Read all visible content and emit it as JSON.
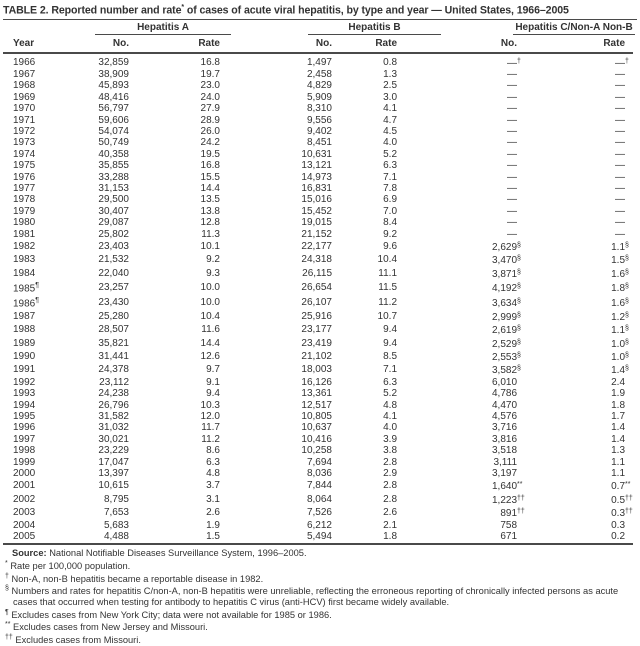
{
  "title": {
    "part1": "TABLE 2. Reported number and rate",
    "marker": "*",
    "part2": " of cases of acute viral hepatitis, by type and year — United States, 1966–2005"
  },
  "table": {
    "year_header": "Year",
    "groups": [
      {
        "label": "Hepatitis A"
      },
      {
        "label": "Hepatitis B"
      },
      {
        "label": "Hepatitis C/Non-A Non-B"
      }
    ],
    "subheaders": {
      "no": "No.",
      "rate": "Rate"
    },
    "columns": [
      "year",
      "year_mark",
      "hep_a_no",
      "hep_a_rate",
      "hep_b_no",
      "hep_b_rate",
      "hep_c_no",
      "hep_c_no_mark",
      "hep_c_rate",
      "hep_c_rate_mark"
    ],
    "rows": [
      [
        "1966",
        "",
        "32,859",
        "16.8",
        "1,497",
        "0.8",
        "—",
        "†",
        "—",
        "†"
      ],
      [
        "1967",
        "",
        "38,909",
        "19.7",
        "2,458",
        "1.3",
        "—",
        "",
        "—",
        ""
      ],
      [
        "1968",
        "",
        "45,893",
        "23.0",
        "4,829",
        "2.5",
        "—",
        "",
        "—",
        ""
      ],
      [
        "1969",
        "",
        "48,416",
        "24.0",
        "5,909",
        "3.0",
        "—",
        "",
        "—",
        ""
      ],
      [
        "1970",
        "",
        "56,797",
        "27.9",
        "8,310",
        "4.1",
        "—",
        "",
        "—",
        ""
      ],
      [
        "1971",
        "",
        "59,606",
        "28.9",
        "9,556",
        "4.7",
        "—",
        "",
        "—",
        ""
      ],
      [
        "1972",
        "",
        "54,074",
        "26.0",
        "9,402",
        "4.5",
        "—",
        "",
        "—",
        ""
      ],
      [
        "1973",
        "",
        "50,749",
        "24.2",
        "8,451",
        "4.0",
        "—",
        "",
        "—",
        ""
      ],
      [
        "1974",
        "",
        "40,358",
        "19.5",
        "10,631",
        "5.2",
        "—",
        "",
        "—",
        ""
      ],
      [
        "1975",
        "",
        "35,855",
        "16.8",
        "13,121",
        "6.3",
        "—",
        "",
        "—",
        ""
      ],
      [
        "1976",
        "",
        "33,288",
        "15.5",
        "14,973",
        "7.1",
        "—",
        "",
        "—",
        ""
      ],
      [
        "1977",
        "",
        "31,153",
        "14.4",
        "16,831",
        "7.8",
        "—",
        "",
        "—",
        ""
      ],
      [
        "1978",
        "",
        "29,500",
        "13.5",
        "15,016",
        "6.9",
        "—",
        "",
        "—",
        ""
      ],
      [
        "1979",
        "",
        "30,407",
        "13.8",
        "15,452",
        "7.0",
        "—",
        "",
        "—",
        ""
      ],
      [
        "1980",
        "",
        "29,087",
        "12.8",
        "19,015",
        "8.4",
        "—",
        "",
        "—",
        ""
      ],
      [
        "1981",
        "",
        "25,802",
        "11.3",
        "21,152",
        "9.2",
        "—",
        "",
        "—",
        ""
      ],
      [
        "1982",
        "",
        "23,403",
        "10.1",
        "22,177",
        "9.6",
        "2,629",
        "§",
        "1.1",
        "§"
      ],
      [
        "1983",
        "",
        "21,532",
        "9.2",
        "24,318",
        "10.4",
        "3,470",
        "§",
        "1.5",
        "§"
      ],
      [
        "1984",
        "",
        "22,040",
        "9.3",
        "26,115",
        "11.1",
        "3,871",
        "§",
        "1.6",
        "§"
      ],
      [
        "1985",
        "¶",
        "23,257",
        "10.0",
        "26,654",
        "11.5",
        "4,192",
        "§",
        "1.8",
        "§"
      ],
      [
        "1986",
        "¶",
        "23,430",
        "10.0",
        "26,107",
        "11.2",
        "3,634",
        "§",
        "1.6",
        "§"
      ],
      [
        "1987",
        "",
        "25,280",
        "10.4",
        "25,916",
        "10.7",
        "2,999",
        "§",
        "1.2",
        "§"
      ],
      [
        "1988",
        "",
        "28,507",
        "11.6",
        "23,177",
        "9.4",
        "2,619",
        "§",
        "1.1",
        "§"
      ],
      [
        "1989",
        "",
        "35,821",
        "14.4",
        "23,419",
        "9.4",
        "2,529",
        "§",
        "1.0",
        "§"
      ],
      [
        "1990",
        "",
        "31,441",
        "12.6",
        "21,102",
        "8.5",
        "2,553",
        "§",
        "1.0",
        "§"
      ],
      [
        "1991",
        "",
        "24,378",
        "9.7",
        "18,003",
        "7.1",
        "3,582",
        "§",
        "1.4",
        "§"
      ],
      [
        "1992",
        "",
        "23,112",
        "9.1",
        "16,126",
        "6.3",
        "6,010",
        "",
        "2.4",
        ""
      ],
      [
        "1993",
        "",
        "24,238",
        "9.4",
        "13,361",
        "5.2",
        "4,786",
        "",
        "1.9",
        ""
      ],
      [
        "1994",
        "",
        "26,796",
        "10.3",
        "12,517",
        "4.8",
        "4,470",
        "",
        "1.8",
        ""
      ],
      [
        "1995",
        "",
        "31,582",
        "12.0",
        "10,805",
        "4.1",
        "4,576",
        "",
        "1.7",
        ""
      ],
      [
        "1996",
        "",
        "31,032",
        "11.7",
        "10,637",
        "4.0",
        "3,716",
        "",
        "1.4",
        ""
      ],
      [
        "1997",
        "",
        "30,021",
        "11.2",
        "10,416",
        "3.9",
        "3,816",
        "",
        "1.4",
        ""
      ],
      [
        "1998",
        "",
        "23,229",
        "8.6",
        "10,258",
        "3.8",
        "3,518",
        "",
        "1.3",
        ""
      ],
      [
        "1999",
        "",
        "17,047",
        "6.3",
        "7,694",
        "2.8",
        "3,111",
        "",
        "1.1",
        ""
      ],
      [
        "2000",
        "",
        "13,397",
        "4.8",
        "8,036",
        "2.9",
        "3,197",
        "",
        "1.1",
        ""
      ],
      [
        "2001",
        "",
        "10,615",
        "3.7",
        "7,844",
        "2.8",
        "1,640",
        "**",
        "0.7",
        "**"
      ],
      [
        "2002",
        "",
        "8,795",
        "3.1",
        "8,064",
        "2.8",
        "1,223",
        "††",
        "0.5",
        "††"
      ],
      [
        "2003",
        "",
        "7,653",
        "2.6",
        "7,526",
        "2.6",
        "891",
        "††",
        "0.3",
        "††"
      ],
      [
        "2004",
        "",
        "5,683",
        "1.9",
        "6,212",
        "2.1",
        "758",
        "",
        "0.3",
        ""
      ],
      [
        "2005",
        "",
        "4,488",
        "1.5",
        "5,494",
        "1.8",
        "671",
        "",
        "0.2",
        ""
      ]
    ]
  },
  "footnotes": {
    "source_label": "Source:",
    "source_text": " National Notifiable Diseases Surveillance System, 1996–2005.",
    "items": [
      {
        "marker": "*",
        "text": "Rate per 100,000 population."
      },
      {
        "marker": "†",
        "text": "Non-A, non-B hepatitis became a reportable disease in 1982."
      },
      {
        "marker": "§",
        "text": "Numbers and rates for hepatitis C/non-A, non-B hepatitis were unreliable, reflecting the erroneous reporting of chronically infected persons as acute cases that occurred when testing for antibody to hepatitis C virus (anti-HCV) first became widely available."
      },
      {
        "marker": "¶",
        "text": "Excludes cases from New York City; data were not available for 1985 or 1986."
      },
      {
        "marker": "**",
        "text": "Excludes cases from New Jersey and Missouri."
      },
      {
        "marker": "††",
        "text": "Excludes cases from Missouri."
      }
    ]
  }
}
